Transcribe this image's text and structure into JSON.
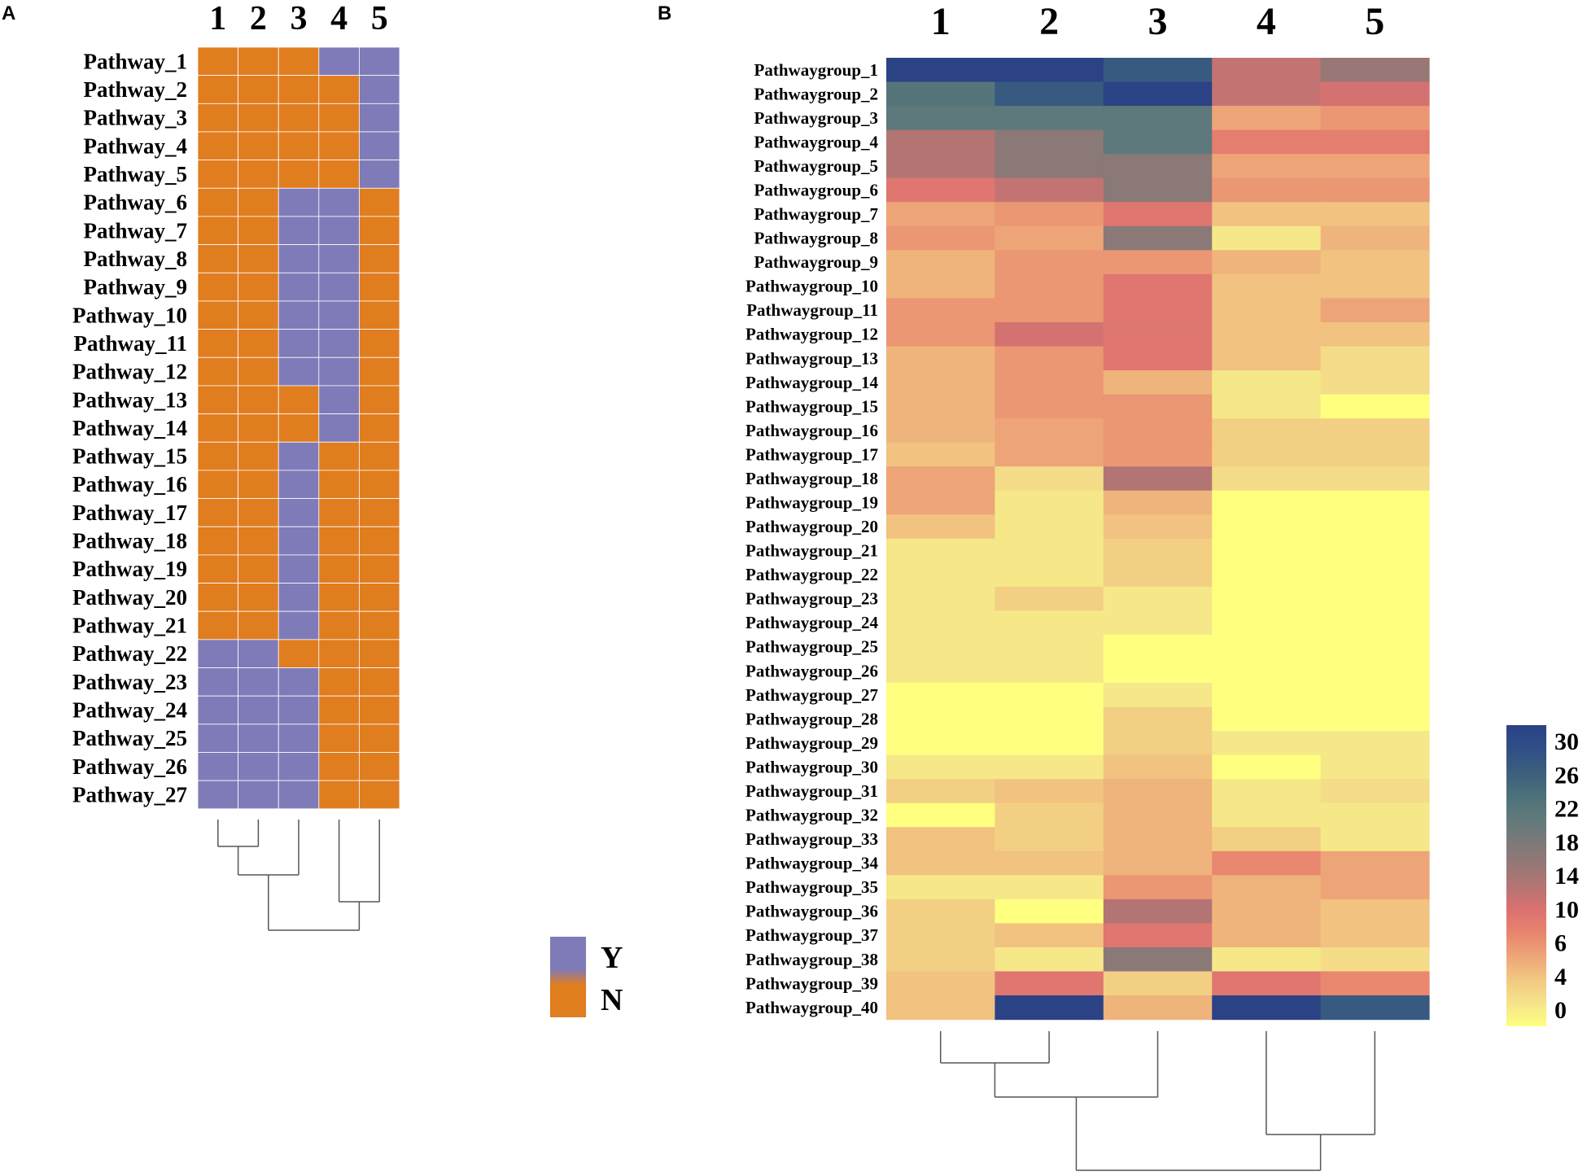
{
  "chart_data": [
    {
      "panel": "A",
      "type": "heatmap",
      "columns": [
        "1",
        "2",
        "3",
        "4",
        "5"
      ],
      "rows": [
        "Pathway_1",
        "Pathway_2",
        "Pathway_3",
        "Pathway_4",
        "Pathway_5",
        "Pathway_6",
        "Pathway_7",
        "Pathway_8",
        "Pathway_9",
        "Pathway_10",
        "Pathway_11",
        "Pathway_12",
        "Pathway_13",
        "Pathway_14",
        "Pathway_15",
        "Pathway_16",
        "Pathway_17",
        "Pathway_18",
        "Pathway_19",
        "Pathway_20",
        "Pathway_21",
        "Pathway_22",
        "Pathway_23",
        "Pathway_24",
        "Pathway_25",
        "Pathway_26",
        "Pathway_27"
      ],
      "values": [
        [
          "N",
          "N",
          "N",
          "Y",
          "Y"
        ],
        [
          "N",
          "N",
          "N",
          "N",
          "Y"
        ],
        [
          "N",
          "N",
          "N",
          "N",
          "Y"
        ],
        [
          "N",
          "N",
          "N",
          "N",
          "Y"
        ],
        [
          "N",
          "N",
          "N",
          "N",
          "Y"
        ],
        [
          "N",
          "N",
          "Y",
          "Y",
          "N"
        ],
        [
          "N",
          "N",
          "Y",
          "Y",
          "N"
        ],
        [
          "N",
          "N",
          "Y",
          "Y",
          "N"
        ],
        [
          "N",
          "N",
          "Y",
          "Y",
          "N"
        ],
        [
          "N",
          "N",
          "Y",
          "Y",
          "N"
        ],
        [
          "N",
          "N",
          "Y",
          "Y",
          "N"
        ],
        [
          "N",
          "N",
          "Y",
          "Y",
          "N"
        ],
        [
          "N",
          "N",
          "N",
          "Y",
          "N"
        ],
        [
          "N",
          "N",
          "N",
          "Y",
          "N"
        ],
        [
          "N",
          "N",
          "Y",
          "N",
          "N"
        ],
        [
          "N",
          "N",
          "Y",
          "N",
          "N"
        ],
        [
          "N",
          "N",
          "Y",
          "N",
          "N"
        ],
        [
          "N",
          "N",
          "Y",
          "N",
          "N"
        ],
        [
          "N",
          "N",
          "Y",
          "N",
          "N"
        ],
        [
          "N",
          "N",
          "Y",
          "N",
          "N"
        ],
        [
          "N",
          "N",
          "Y",
          "N",
          "N"
        ],
        [
          "Y",
          "Y",
          "N",
          "N",
          "N"
        ],
        [
          "Y",
          "Y",
          "Y",
          "N",
          "N"
        ],
        [
          "Y",
          "Y",
          "Y",
          "N",
          "N"
        ],
        [
          "Y",
          "Y",
          "Y",
          "N",
          "N"
        ],
        [
          "Y",
          "Y",
          "Y",
          "N",
          "N"
        ],
        [
          "Y",
          "Y",
          "Y",
          "N",
          "N"
        ]
      ],
      "legend": [
        {
          "label": "Y",
          "color": "#7f7bb8"
        },
        {
          "label": "N",
          "color": "#e07d1f"
        }
      ],
      "dendrogram": "columns ((1,2),3),(4,5)"
    },
    {
      "panel": "B",
      "type": "heatmap",
      "columns": [
        "1",
        "2",
        "3",
        "4",
        "5"
      ],
      "rows": [
        "Pathwaygroup_1",
        "Pathwaygroup_2",
        "Pathwaygroup_3",
        "Pathwaygroup_4",
        "Pathwaygroup_5",
        "Pathwaygroup_6",
        "Pathwaygroup_7",
        "Pathwaygroup_8",
        "Pathwaygroup_9",
        "Pathwaygroup_10",
        "Pathwaygroup_11",
        "Pathwaygroup_12",
        "Pathwaygroup_13",
        "Pathwaygroup_14",
        "Pathwaygroup_15",
        "Pathwaygroup_16",
        "Pathwaygroup_17",
        "Pathwaygroup_18",
        "Pathwaygroup_19",
        "Pathwaygroup_20",
        "Pathwaygroup_21",
        "Pathwaygroup_22",
        "Pathwaygroup_23",
        "Pathwaygroup_24",
        "Pathwaygroup_25",
        "Pathwaygroup_26",
        "Pathwaygroup_27",
        "Pathwaygroup_28",
        "Pathwaygroup_29",
        "Pathwaygroup_30",
        "Pathwaygroup_31",
        "Pathwaygroup_32",
        "Pathwaygroup_33",
        "Pathwaygroup_34",
        "Pathwaygroup_35",
        "Pathwaygroup_36",
        "Pathwaygroup_37",
        "Pathwaygroup_38",
        "Pathwaygroup_39",
        "Pathwaygroup_40"
      ],
      "values": [
        [
          30,
          30,
          26,
          13,
          16
        ],
        [
          22,
          26,
          30,
          13,
          12
        ],
        [
          21,
          21,
          21,
          7,
          8
        ],
        [
          14,
          17,
          21,
          10,
          10
        ],
        [
          14,
          17,
          17,
          7,
          7
        ],
        [
          11,
          13,
          17,
          8,
          8
        ],
        [
          7,
          8,
          11,
          5,
          5
        ],
        [
          8,
          7,
          17,
          2,
          6
        ],
        [
          6,
          8,
          8,
          6,
          5
        ],
        [
          6,
          8,
          11,
          5,
          5
        ],
        [
          8,
          8,
          11,
          5,
          7
        ],
        [
          8,
          12,
          11,
          5,
          5
        ],
        [
          6,
          8,
          11,
          5,
          3
        ],
        [
          6,
          8,
          6,
          2,
          3
        ],
        [
          6,
          8,
          8,
          2,
          0
        ],
        [
          6,
          7,
          8,
          4,
          4
        ],
        [
          5,
          7,
          8,
          4,
          4
        ],
        [
          7,
          3,
          14,
          3,
          3
        ],
        [
          7,
          2,
          6,
          0,
          0
        ],
        [
          5,
          2,
          5,
          0,
          0
        ],
        [
          2,
          2,
          4,
          0,
          0
        ],
        [
          2,
          2,
          4,
          0,
          0
        ],
        [
          2,
          4,
          2,
          0,
          0
        ],
        [
          2,
          2,
          2,
          0,
          0
        ],
        [
          2,
          2,
          0,
          0,
          0
        ],
        [
          2,
          2,
          0,
          0,
          0
        ],
        [
          0,
          0,
          2,
          0,
          0
        ],
        [
          0,
          0,
          4,
          0,
          0
        ],
        [
          0,
          0,
          4,
          2,
          2
        ],
        [
          2,
          2,
          5,
          0,
          2
        ],
        [
          4,
          5,
          6,
          2,
          3
        ],
        [
          0,
          4,
          6,
          2,
          2
        ],
        [
          5,
          4,
          6,
          4,
          2
        ],
        [
          5,
          5,
          6,
          9,
          7
        ],
        [
          2,
          2,
          8,
          6,
          7
        ],
        [
          4,
          0,
          14,
          6,
          5
        ],
        [
          4,
          5,
          11,
          6,
          5
        ],
        [
          4,
          2,
          17,
          2,
          3
        ],
        [
          5,
          11,
          4,
          11,
          9
        ],
        [
          5,
          30,
          6,
          30,
          26
        ]
      ],
      "legend_ticks": [
        "30",
        "26",
        "22",
        "18",
        "14",
        "10",
        "6",
        "4",
        "0"
      ],
      "color_scale": [
        "#ffff80",
        "#f5e48a",
        "#f2c882",
        "#eda678",
        "#e8856e",
        "#dc7170",
        "#b57573",
        "#957876",
        "#7a7a79",
        "#5f7a7b",
        "#4c7079",
        "#3b5e7d",
        "#2f4e87",
        "#2b4285"
      ],
      "dendrogram": "columns ((1,2),3),(4,5)"
    }
  ]
}
